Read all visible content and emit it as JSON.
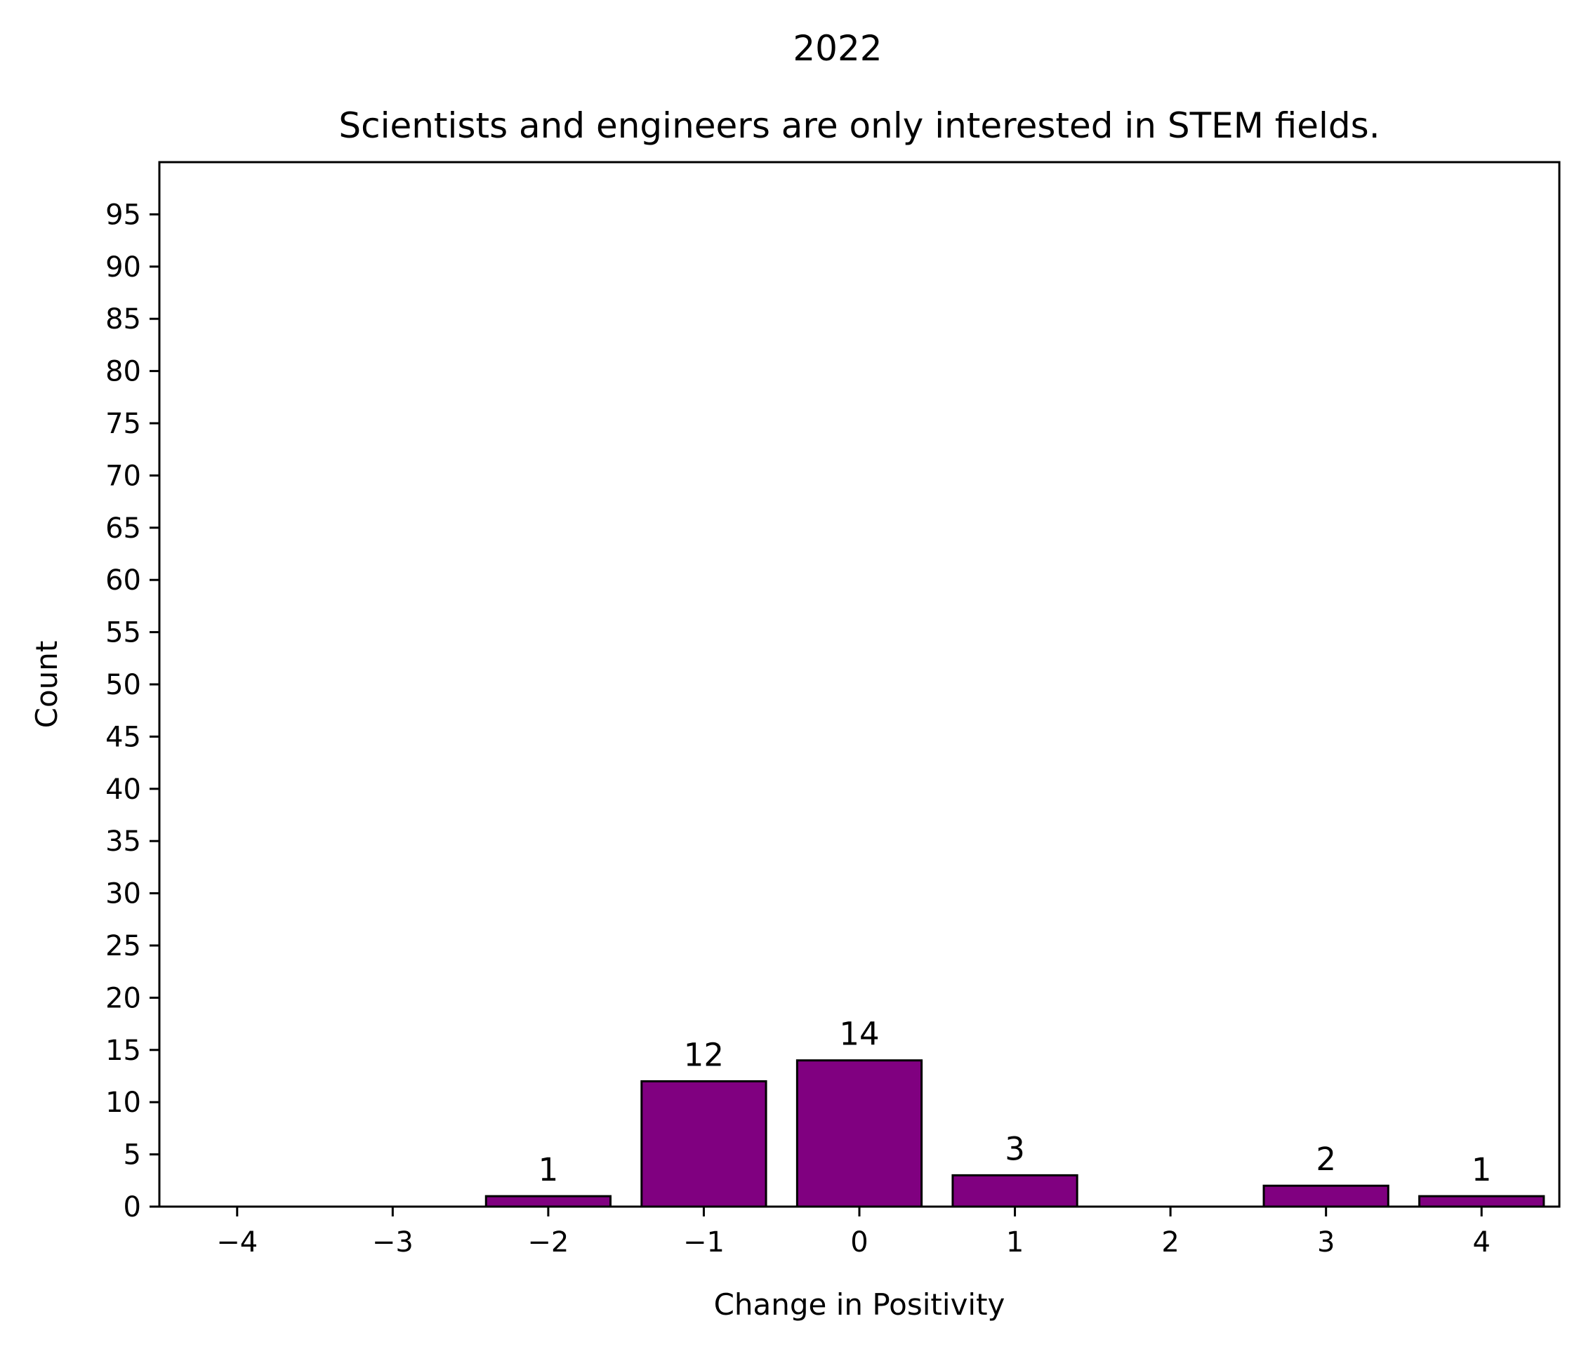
{
  "chart_data": {
    "type": "bar",
    "suptitle": "2022",
    "title": "Scientists and engineers are only interested in STEM fields.",
    "xlabel": "Change in Positivity",
    "ylabel": "Count",
    "x": [
      -2,
      -1,
      0,
      1,
      3,
      4
    ],
    "values": [
      1,
      12,
      14,
      3,
      2,
      1
    ],
    "data_labels": [
      "1",
      "12",
      "14",
      "3",
      "2",
      "1"
    ],
    "xticks": [
      -4,
      -3,
      -2,
      -1,
      0,
      1,
      2,
      3,
      4
    ],
    "xtick_labels": [
      "−4",
      "−3",
      "−2",
      "−1",
      "0",
      "1",
      "2",
      "3",
      "4"
    ],
    "yticks": [
      0,
      5,
      10,
      15,
      20,
      25,
      30,
      35,
      40,
      45,
      50,
      55,
      60,
      65,
      70,
      75,
      80,
      85,
      90,
      95
    ],
    "ytick_labels": [
      "0",
      "5",
      "10",
      "15",
      "20",
      "25",
      "30",
      "35",
      "40",
      "45",
      "50",
      "55",
      "60",
      "65",
      "70",
      "75",
      "80",
      "85",
      "90",
      "95"
    ],
    "xlim": [
      -4.5,
      4.5
    ],
    "ylim": [
      0,
      100
    ],
    "bar_color": "#800080",
    "edge_color": "#000000",
    "grid": false
  }
}
